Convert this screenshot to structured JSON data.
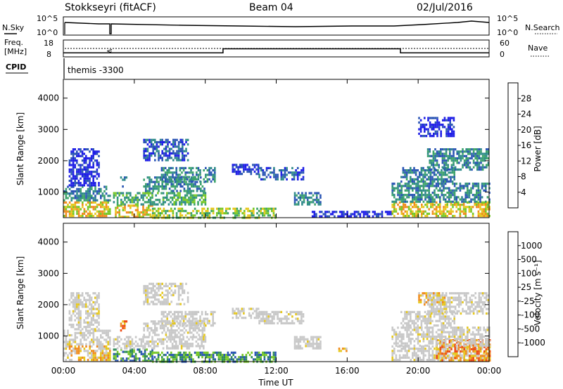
{
  "header": {
    "station": "Stokkseyri (fitACF)",
    "beam": "Beam 04",
    "date": "02/Jul/2016"
  },
  "noise_panel": {
    "left_label": "N.Sky",
    "left_ticks": [
      "10^5",
      "10^0"
    ],
    "right_label": "N.Search",
    "right_ticks": [
      "10^5",
      "10^0"
    ]
  },
  "freq_panel": {
    "left_label_line1": "Freq.",
    "left_label_line2": "[MHz]",
    "left_ticks": [
      "18",
      "8"
    ],
    "right_label": "Nave",
    "right_ticks": [
      "60",
      "0"
    ],
    "nave_segments": [
      {
        "start_hour": 0,
        "end_hour": 9,
        "value": 5
      },
      {
        "start_hour": 9,
        "end_hour": 19,
        "value": 13
      },
      {
        "start_hour": 19,
        "end_hour": 24,
        "value": 5
      }
    ],
    "freq_mhz": 12
  },
  "cpid": {
    "label": "CPID",
    "value": "themis -3300"
  },
  "colors": {
    "power_scale": [
      "#1e1ee6",
      "#2a55b4",
      "#2f8a8a",
      "#3da36a",
      "#78c828",
      "#e6c81e",
      "#f08c1e",
      "#ee4b14",
      "#e01414"
    ],
    "velocity_scale": [
      "#1e1ee6",
      "#2a55b4",
      "#2e8b57",
      "#78c828",
      "#c8c8c8",
      "#e6c81e",
      "#f08c1e",
      "#ee4b14",
      "#e01414"
    ],
    "ground_scatter": "#c8c8c8"
  },
  "chart_data": [
    {
      "type": "heatmap",
      "name": "power",
      "xlabel": "Time UT",
      "ylabel": "Slant Range [km]",
      "x_ticks": [
        "00:00",
        "04:00",
        "08:00",
        "12:00",
        "16:00",
        "20:00",
        "00:00"
      ],
      "x_range_hours": [
        0,
        24
      ],
      "y_ticks": [
        1000,
        2000,
        3000,
        4000
      ],
      "y_range_km": [
        180,
        4600
      ],
      "colorbar": {
        "label": "Power [dB]",
        "ticks": [
          4,
          8,
          12,
          16,
          20,
          24,
          28
        ],
        "range": [
          0,
          32
        ]
      },
      "echo_regions": [
        {
          "t0": 0.0,
          "t1": 2.6,
          "r0": 250,
          "r1": 700,
          "level": 26
        },
        {
          "t0": 0.0,
          "t1": 2.6,
          "r0": 700,
          "r1": 1200,
          "level": 12
        },
        {
          "t0": 0.3,
          "t1": 2.0,
          "r0": 1200,
          "r1": 2400,
          "level": 6
        },
        {
          "t0": 2.8,
          "t1": 5.0,
          "r0": 200,
          "r1": 600,
          "level": 27
        },
        {
          "t0": 2.8,
          "t1": 8.0,
          "r0": 600,
          "r1": 1000,
          "level": 18
        },
        {
          "t0": 3.2,
          "t1": 3.6,
          "r0": 1200,
          "r1": 1500,
          "level": 14
        },
        {
          "t0": 4.5,
          "t1": 8.0,
          "r0": 1000,
          "r1": 1500,
          "level": 14
        },
        {
          "t0": 4.5,
          "t1": 7.0,
          "r0": 2000,
          "r1": 2700,
          "level": 10
        },
        {
          "t0": 5.5,
          "t1": 8.5,
          "r0": 1300,
          "r1": 1800,
          "level": 12
        },
        {
          "t0": 5.0,
          "t1": 12.0,
          "r0": 200,
          "r1": 500,
          "level": 20
        },
        {
          "t0": 9.5,
          "t1": 11.0,
          "r0": 1600,
          "r1": 1900,
          "level": 6
        },
        {
          "t0": 11.0,
          "t1": 13.5,
          "r0": 1400,
          "r1": 1800,
          "level": 8
        },
        {
          "t0": 13.0,
          "t1": 14.5,
          "r0": 600,
          "r1": 1000,
          "level": 14
        },
        {
          "t0": 14.0,
          "t1": 18.5,
          "r0": 200,
          "r1": 400,
          "level": 6
        },
        {
          "t0": 18.5,
          "t1": 24.0,
          "r0": 200,
          "r1": 700,
          "level": 25
        },
        {
          "t0": 18.5,
          "t1": 24.0,
          "r0": 700,
          "r1": 1300,
          "level": 12
        },
        {
          "t0": 19.0,
          "t1": 22.0,
          "r0": 1300,
          "r1": 1800,
          "level": 12
        },
        {
          "t0": 20.5,
          "t1": 24.0,
          "r0": 1700,
          "r1": 2400,
          "level": 12
        },
        {
          "t0": 20.0,
          "t1": 22.0,
          "r0": 2800,
          "r1": 3400,
          "level": 5
        }
      ]
    },
    {
      "type": "heatmap",
      "name": "velocity",
      "xlabel": "Time UT",
      "ylabel": "Slant Range [km]",
      "x_ticks": [
        "00:00",
        "04:00",
        "08:00",
        "12:00",
        "16:00",
        "20:00",
        "00:00"
      ],
      "x_range_hours": [
        0,
        24
      ],
      "y_ticks": [
        1000,
        2000,
        3000,
        4000
      ],
      "y_range_km": [
        180,
        4600
      ],
      "colorbar": {
        "label": "Velocity [m s⁻¹]",
        "ticks": [
          "1000",
          "500",
          "100",
          "25",
          "-25",
          "-100",
          "-500",
          "-1000"
        ]
      },
      "echo_regions": [
        {
          "t0": 0.0,
          "t1": 2.6,
          "r0": 250,
          "r1": 700,
          "level": "-100"
        },
        {
          "t0": 0.0,
          "t1": 2.6,
          "r0": 700,
          "r1": 1200,
          "level": "gs"
        },
        {
          "t0": 0.3,
          "t1": 2.0,
          "r0": 1200,
          "r1": 2400,
          "level": "gs"
        },
        {
          "t0": 2.8,
          "t1": 5.0,
          "r0": 200,
          "r1": 600,
          "level": "100"
        },
        {
          "t0": 2.8,
          "t1": 8.0,
          "r0": 600,
          "r1": 1000,
          "level": "gs"
        },
        {
          "t0": 3.2,
          "t1": 3.6,
          "r0": 1200,
          "r1": 1500,
          "level": "-500"
        },
        {
          "t0": 4.5,
          "t1": 8.0,
          "r0": 1000,
          "r1": 1500,
          "level": "gs"
        },
        {
          "t0": 4.5,
          "t1": 7.0,
          "r0": 2000,
          "r1": 2700,
          "level": "gs"
        },
        {
          "t0": 5.5,
          "t1": 8.5,
          "r0": 1300,
          "r1": 1800,
          "level": "gs"
        },
        {
          "t0": 5.0,
          "t1": 12.0,
          "r0": 200,
          "r1": 500,
          "level": "100"
        },
        {
          "t0": 9.5,
          "t1": 11.0,
          "r0": 1600,
          "r1": 1900,
          "level": "gs"
        },
        {
          "t0": 11.0,
          "t1": 13.5,
          "r0": 1400,
          "r1": 1800,
          "level": "gs"
        },
        {
          "t0": 13.0,
          "t1": 14.5,
          "r0": 600,
          "r1": 1000,
          "level": "gs"
        },
        {
          "t0": 15.5,
          "t1": 16.0,
          "r0": 500,
          "r1": 700,
          "level": "-100"
        },
        {
          "t0": 18.5,
          "t1": 24.0,
          "r0": 200,
          "r1": 700,
          "level": "gs"
        },
        {
          "t0": 21.0,
          "t1": 24.0,
          "r0": 200,
          "r1": 900,
          "level": "-500"
        },
        {
          "t0": 18.5,
          "t1": 24.0,
          "r0": 700,
          "r1": 1300,
          "level": "gs"
        },
        {
          "t0": 19.0,
          "t1": 22.0,
          "r0": 1300,
          "r1": 1800,
          "level": "gs"
        },
        {
          "t0": 20.5,
          "t1": 24.0,
          "r0": 1700,
          "r1": 2400,
          "level": "gs"
        },
        {
          "t0": 20.0,
          "t1": 21.5,
          "r0": 2000,
          "r1": 2400,
          "level": "-100"
        }
      ]
    }
  ],
  "time_axis_label": "Time UT"
}
